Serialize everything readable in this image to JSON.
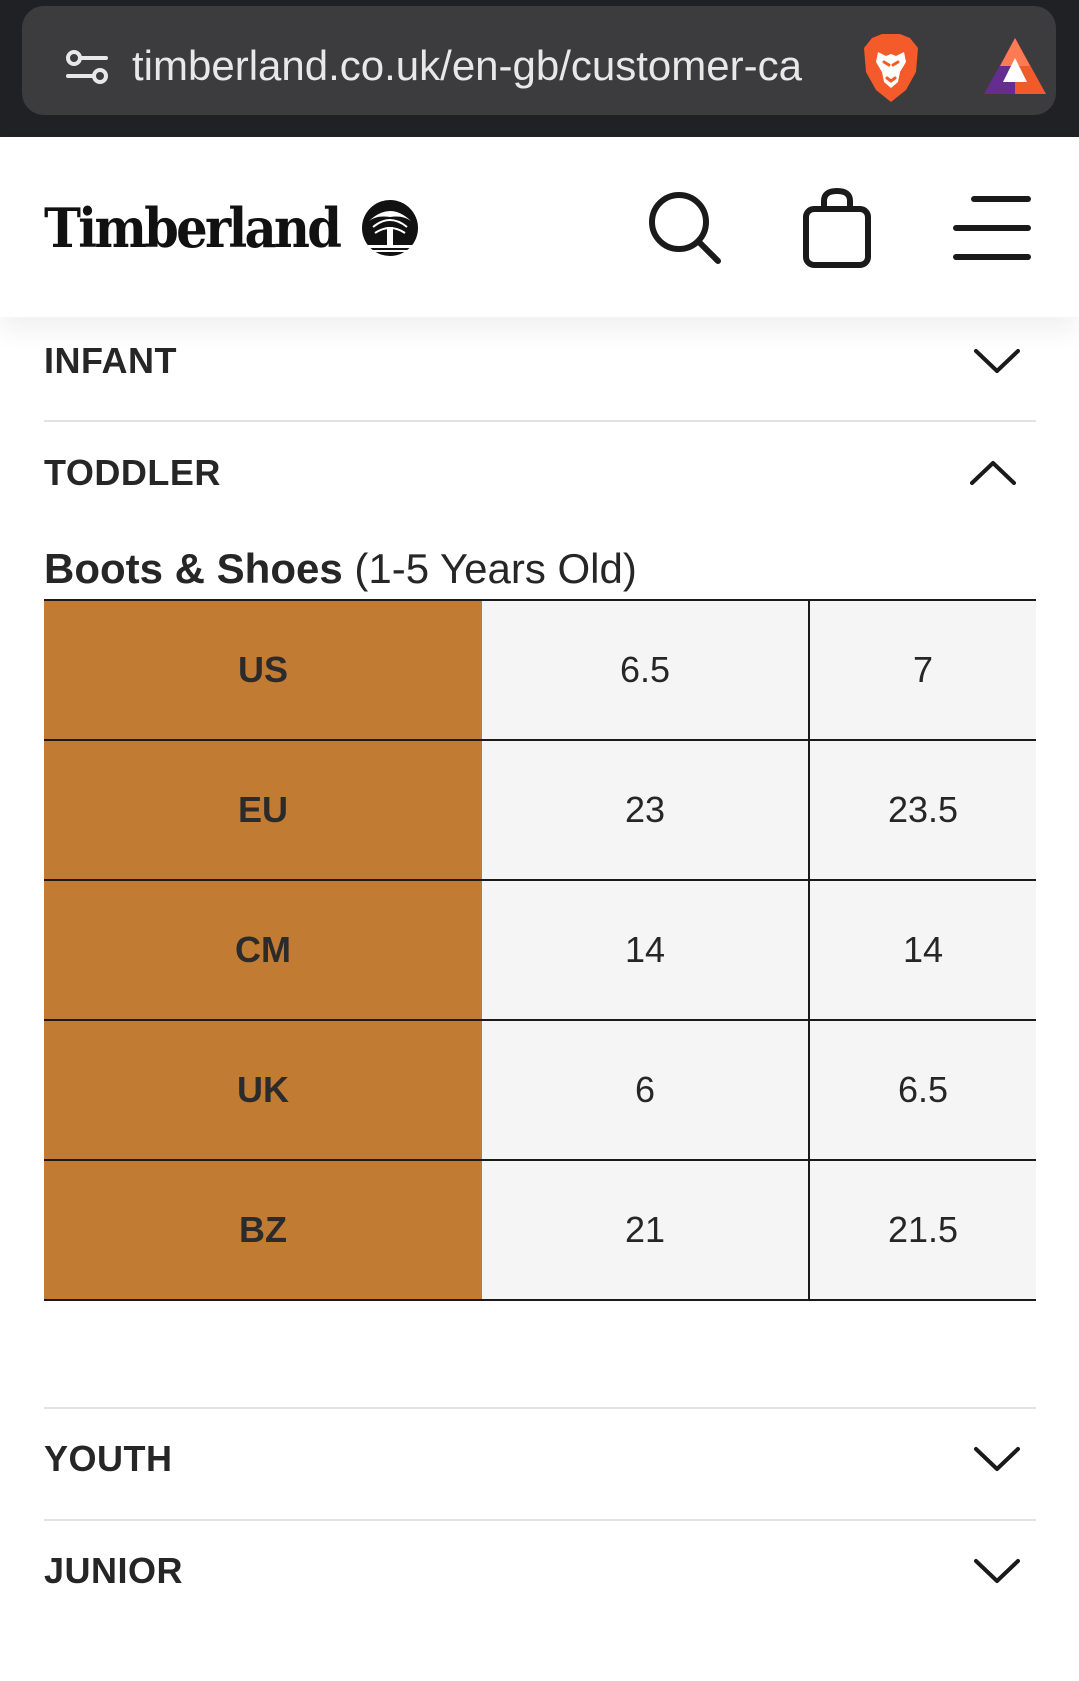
{
  "browser": {
    "url": "timberland.co.uk/en-gb/customer-ca"
  },
  "header": {
    "brand": "Timberland"
  },
  "accordion": {
    "infant": "INFANT",
    "toddler": "TODDLER",
    "youth": "YOUTH",
    "junior": "JUNIOR"
  },
  "toddler_section": {
    "heading_bold": "Boots & Shoes",
    "heading_rest": " (1-5 Years Old)",
    "rows": [
      {
        "label": "US",
        "v1": "6.5",
        "v2": "7"
      },
      {
        "label": "EU",
        "v1": "23",
        "v2": "23.5"
      },
      {
        "label": "CM",
        "v1": "14",
        "v2": "14"
      },
      {
        "label": "UK",
        "v1": "6",
        "v2": "6.5"
      },
      {
        "label": "BZ",
        "v1": "21",
        "v2": "21.5"
      }
    ]
  },
  "colors": {
    "label_bg": "#c27b33",
    "cell_bg": "#f5f5f5",
    "browser_bg": "#202124",
    "url_pill": "#3c3c3e"
  },
  "icons": {
    "site_settings": "tune-icon",
    "brave": "brave-lion-icon",
    "rewards": "bat-triangle-icon",
    "search": "search-icon",
    "bag": "shopping-bag-icon",
    "menu": "hamburger-menu-icon",
    "expand": "chevron-down-icon",
    "collapse": "chevron-up-icon"
  }
}
